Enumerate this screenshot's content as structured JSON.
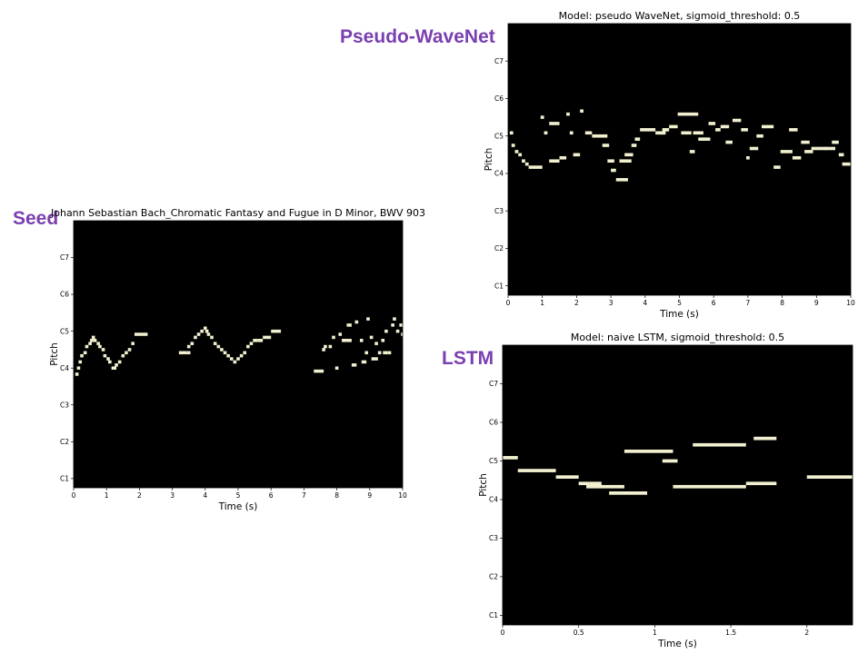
{
  "labels": {
    "seed": "Seed",
    "wavenet": "Pseudo-WaveNet",
    "lstm": "LSTM"
  },
  "colors": {
    "label": "#7a3fb0",
    "plot_bg": "#000000",
    "note": "#f2f0d0"
  },
  "chart_data": [
    {
      "id": "seed",
      "type": "piano-roll",
      "title": "Johann Sebastian Bach_Chromatic Fantasy and Fugue in D Minor, BWV 903",
      "xlabel": "Time (s)",
      "ylabel": "Pitch",
      "xlim": [
        0,
        10
      ],
      "ylim": [
        21,
        108
      ],
      "xticks": [
        0,
        1,
        2,
        3,
        4,
        5,
        6,
        7,
        8,
        9,
        10
      ],
      "xtick_labels": [
        "0",
        "1",
        "2",
        "3",
        "4",
        "5",
        "6",
        "7",
        "8",
        "9",
        "10"
      ],
      "yticks": [
        24,
        36,
        48,
        60,
        72,
        84,
        96
      ],
      "ytick_labels": [
        "C1",
        "C2",
        "C3",
        "C4",
        "C5",
        "C6",
        "C7"
      ],
      "notes": [
        [
          0.05,
          0.15,
          58
        ],
        [
          0.1,
          0.2,
          60
        ],
        [
          0.15,
          0.25,
          62
        ],
        [
          0.2,
          0.3,
          64
        ],
        [
          0.3,
          0.4,
          65
        ],
        [
          0.35,
          0.45,
          67
        ],
        [
          0.45,
          0.55,
          68
        ],
        [
          0.5,
          0.6,
          69
        ],
        [
          0.55,
          0.65,
          70
        ],
        [
          0.6,
          0.7,
          69
        ],
        [
          0.7,
          0.8,
          68
        ],
        [
          0.75,
          0.85,
          67
        ],
        [
          0.85,
          0.95,
          66
        ],
        [
          0.9,
          1.0,
          64
        ],
        [
          1.0,
          1.1,
          63
        ],
        [
          1.05,
          1.15,
          62
        ],
        [
          1.15,
          1.3,
          60
        ],
        [
          1.25,
          1.35,
          61
        ],
        [
          1.35,
          1.45,
          62
        ],
        [
          1.45,
          1.55,
          64
        ],
        [
          1.55,
          1.65,
          65
        ],
        [
          1.65,
          1.75,
          66
        ],
        [
          1.75,
          1.85,
          68
        ],
        [
          1.85,
          2.25,
          71
        ],
        [
          3.2,
          3.45,
          65
        ],
        [
          3.45,
          3.55,
          65
        ],
        [
          3.45,
          3.55,
          67
        ],
        [
          3.55,
          3.65,
          68
        ],
        [
          3.65,
          3.75,
          70
        ],
        [
          3.75,
          3.85,
          71
        ],
        [
          3.85,
          3.95,
          72
        ],
        [
          3.95,
          4.05,
          73
        ],
        [
          4.0,
          4.1,
          72
        ],
        [
          4.05,
          4.15,
          71
        ],
        [
          4.15,
          4.25,
          70
        ],
        [
          4.25,
          4.35,
          68
        ],
        [
          4.35,
          4.45,
          67
        ],
        [
          4.45,
          4.55,
          66
        ],
        [
          4.55,
          4.65,
          65
        ],
        [
          4.65,
          4.75,
          64
        ],
        [
          4.75,
          4.85,
          63
        ],
        [
          4.85,
          4.95,
          62
        ],
        [
          4.95,
          5.05,
          63
        ],
        [
          5.05,
          5.15,
          64
        ],
        [
          5.15,
          5.25,
          65
        ],
        [
          5.25,
          5.35,
          67
        ],
        [
          5.35,
          5.45,
          68
        ],
        [
          5.45,
          5.6,
          69
        ],
        [
          5.6,
          5.75,
          69
        ],
        [
          5.75,
          6.0,
          70
        ],
        [
          6.0,
          6.3,
          72
        ],
        [
          7.3,
          7.6,
          59
        ],
        [
          7.55,
          7.65,
          66
        ],
        [
          7.6,
          7.7,
          67
        ],
        [
          7.75,
          7.85,
          67
        ],
        [
          7.85,
          7.95,
          70
        ],
        [
          7.95,
          8.05,
          60
        ],
        [
          8.05,
          8.15,
          71
        ],
        [
          8.15,
          8.3,
          69
        ],
        [
          8.3,
          8.45,
          69
        ],
        [
          8.3,
          8.45,
          74
        ],
        [
          8.45,
          8.6,
          61
        ],
        [
          8.55,
          8.65,
          75
        ],
        [
          8.7,
          8.8,
          69
        ],
        [
          8.75,
          8.9,
          62
        ],
        [
          8.85,
          8.95,
          65
        ],
        [
          8.9,
          9.0,
          76
        ],
        [
          9.0,
          9.1,
          70
        ],
        [
          9.05,
          9.25,
          63
        ],
        [
          9.15,
          9.25,
          68
        ],
        [
          9.25,
          9.35,
          65
        ],
        [
          9.35,
          9.45,
          69
        ],
        [
          9.4,
          9.55,
          65
        ],
        [
          9.45,
          9.55,
          72
        ],
        [
          9.55,
          9.65,
          65
        ],
        [
          9.65,
          9.75,
          74
        ],
        [
          9.7,
          9.8,
          76
        ],
        [
          9.8,
          9.9,
          72
        ],
        [
          9.9,
          10.0,
          74
        ],
        [
          9.95,
          10.0,
          71
        ]
      ]
    },
    {
      "id": "wavenet",
      "type": "piano-roll",
      "title": "Model: pseudo WaveNet, sigmoid_threshold: 0.5",
      "xlabel": "Time (s)",
      "ylabel": "Pitch",
      "xlim": [
        0,
        10
      ],
      "ylim": [
        21,
        108
      ],
      "xticks": [
        0,
        1,
        2,
        3,
        4,
        5,
        6,
        7,
        8,
        9,
        10
      ],
      "xtick_labels": [
        "0",
        "1",
        "2",
        "3",
        "4",
        "5",
        "6",
        "7",
        "8",
        "9",
        "10"
      ],
      "yticks": [
        24,
        36,
        48,
        60,
        72,
        84,
        96
      ],
      "ytick_labels": [
        "C1",
        "C2",
        "C3",
        "C4",
        "C5",
        "C6",
        "C7"
      ],
      "notes": [
        [
          0.05,
          0.15,
          73
        ],
        [
          0.1,
          0.2,
          69
        ],
        [
          0.2,
          0.3,
          67
        ],
        [
          0.3,
          0.4,
          66
        ],
        [
          0.4,
          0.5,
          64
        ],
        [
          0.5,
          0.6,
          63
        ],
        [
          0.6,
          1.0,
          62
        ],
        [
          0.95,
          1.05,
          78
        ],
        [
          1.05,
          1.15,
          73
        ],
        [
          1.2,
          1.5,
          76
        ],
        [
          1.2,
          1.5,
          64
        ],
        [
          1.5,
          1.7,
          65
        ],
        [
          1.7,
          1.8,
          79
        ],
        [
          1.8,
          1.9,
          73
        ],
        [
          1.9,
          2.1,
          66
        ],
        [
          2.1,
          2.2,
          80
        ],
        [
          2.25,
          2.45,
          73
        ],
        [
          2.45,
          2.6,
          72
        ],
        [
          2.6,
          2.9,
          72
        ],
        [
          2.75,
          2.95,
          69
        ],
        [
          2.9,
          3.1,
          64
        ],
        [
          3.0,
          3.15,
          61
        ],
        [
          3.15,
          3.5,
          58
        ],
        [
          3.25,
          3.6,
          64
        ],
        [
          3.4,
          3.65,
          66
        ],
        [
          3.6,
          3.75,
          69
        ],
        [
          3.7,
          3.85,
          71
        ],
        [
          3.85,
          4.3,
          74
        ],
        [
          4.3,
          4.55,
          73
        ],
        [
          4.4,
          4.6,
          73
        ],
        [
          4.5,
          4.7,
          74
        ],
        [
          4.7,
          4.95,
          75
        ],
        [
          4.95,
          5.55,
          79
        ],
        [
          5.05,
          5.35,
          73
        ],
        [
          5.3,
          5.45,
          67
        ],
        [
          5.4,
          5.7,
          73
        ],
        [
          5.55,
          5.9,
          71
        ],
        [
          5.85,
          6.05,
          76
        ],
        [
          6.05,
          6.2,
          74
        ],
        [
          6.2,
          6.45,
          75
        ],
        [
          6.35,
          6.55,
          70
        ],
        [
          6.55,
          6.8,
          77
        ],
        [
          6.8,
          7.0,
          74
        ],
        [
          6.95,
          7.05,
          65
        ],
        [
          7.05,
          7.3,
          68
        ],
        [
          7.25,
          7.45,
          72
        ],
        [
          7.4,
          7.75,
          75
        ],
        [
          7.75,
          7.95,
          62
        ],
        [
          7.95,
          8.3,
          67
        ],
        [
          8.2,
          8.45,
          74
        ],
        [
          8.3,
          8.55,
          65
        ],
        [
          8.55,
          8.8,
          70
        ],
        [
          8.65,
          8.9,
          67
        ],
        [
          8.85,
          9.15,
          68
        ],
        [
          9.15,
          9.3,
          68
        ],
        [
          9.25,
          9.55,
          68
        ],
        [
          9.45,
          9.65,
          70
        ],
        [
          9.65,
          9.8,
          66
        ],
        [
          9.75,
          10.0,
          63
        ]
      ]
    },
    {
      "id": "lstm",
      "type": "piano-roll",
      "title": "Model: naive LSTM, sigmoid_threshold: 0.5",
      "xlabel": "Time (s)",
      "ylabel": "Pitch",
      "xlim": [
        0,
        2.3
      ],
      "ylim": [
        21,
        108
      ],
      "xticks": [
        0,
        0.5,
        1,
        1.5,
        2
      ],
      "xtick_labels": [
        "0",
        "0.5",
        "1",
        "1.5",
        "2"
      ],
      "yticks": [
        24,
        36,
        48,
        60,
        72,
        84,
        96
      ],
      "ytick_labels": [
        "C1",
        "C2",
        "C3",
        "C4",
        "C5",
        "C6",
        "C7"
      ],
      "notes": [
        [
          0.0,
          0.1,
          73
        ],
        [
          0.1,
          0.35,
          69
        ],
        [
          0.35,
          0.5,
          67
        ],
        [
          0.5,
          0.57,
          65
        ],
        [
          0.57,
          0.65,
          65
        ],
        [
          0.55,
          0.8,
          64
        ],
        [
          0.7,
          0.95,
          62
        ],
        [
          0.8,
          1.12,
          75
        ],
        [
          1.05,
          1.15,
          72
        ],
        [
          1.12,
          1.6,
          64
        ],
        [
          1.25,
          1.6,
          77
        ],
        [
          1.6,
          1.8,
          65
        ],
        [
          1.65,
          1.8,
          79
        ],
        [
          2.0,
          2.3,
          67
        ]
      ]
    }
  ]
}
